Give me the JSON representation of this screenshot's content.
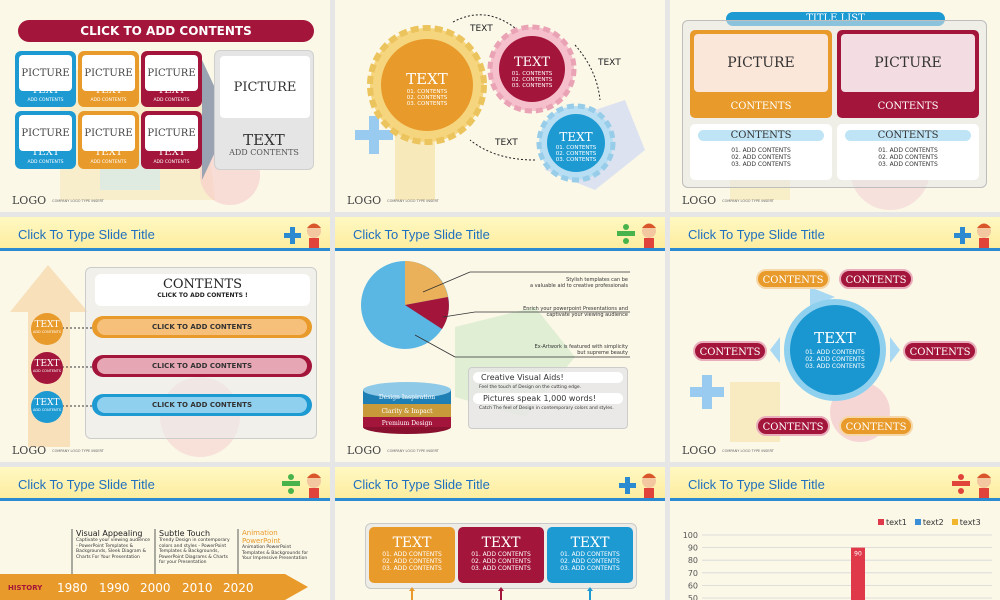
{
  "logo": {
    "text": "LOGO",
    "company": "COMPANY LOGO TYPE INSERT"
  },
  "header_title": "Click To Type Slide Title",
  "slide1": {
    "banner": "CLICK TO ADD CONTENTS",
    "tile_pic": "PICTURE",
    "tile_text": "TEXT",
    "tile_sub": "ADD CONTENTS",
    "big_pic": "PICTURE",
    "big_text": "TEXT",
    "big_sub": "ADD CONTENTS",
    "colors": [
      "#1e9ad3",
      "#e89a2a",
      "#a3153a"
    ]
  },
  "slide2": {
    "gear_text": "TEXT",
    "line1": "01. CONTENTS",
    "line2": "02. CONTENTS",
    "line3": "03. CONTENTS",
    "arrow_label": "TEXT"
  },
  "slide3": {
    "title": "TITLE LIST",
    "picture": "PICTURE",
    "contents": "CONTENTS",
    "line1": "01. ADD CONTENTS",
    "line2": "02. ADD CONTENTS",
    "line3": "03. ADD CONTENTS"
  },
  "slide4": {
    "heading": "CONTENTS",
    "sub": "CLICK TO ADD CONTENTS !",
    "bar": "CLICK TO ADD CONTENTS",
    "text": "TEXT",
    "add": "ADD CONTENTS"
  },
  "slide5": {
    "cap1a": "Stylish templates can be",
    "cap1b": "a valuable aid to creative professionals",
    "cap2a": "Enrich your powerpoint Presentations and",
    "cap2b": "captivate your viewing audience",
    "cap3a": "Ex-Artwork is featured with simplicity",
    "cap3b": "but supreme beauty",
    "layers": [
      "Design Inspiration",
      "Clarity & Impact",
      "Premium Design"
    ],
    "box1": "Creative Visual Aids!",
    "box1_desc": "Feel the touch of Design on the cutting edge.",
    "box2": "Pictures speak 1,000 words!",
    "box2_desc": "Catch The feel of Design in contemporary colors and styles."
  },
  "slide6": {
    "contents": "CONTENTS",
    "center": "TEXT",
    "line1": "01. ADD CONTENTS",
    "line2": "02. ADD CONTENTS",
    "line3": "03. ADD CONTENTS"
  },
  "slide7": {
    "history": "HISTORY",
    "years": [
      "1980",
      "1990",
      "2000",
      "2010",
      "2020"
    ],
    "items": [
      {
        "title": "Visual Appealing",
        "desc": "Captivate your viewing audience - PowerPoint Templates & Backgrounds, Sleek Diagram & Charts For Your Presentation"
      },
      {
        "title": "Subtle Touch",
        "desc": "Trendy Design in contemporary colors and styles - PowerPoint Templates & Backgrounds, PowerPoint Diagrams & Charts for your Presentation"
      },
      {
        "title": "Animation PowerPoint",
        "desc": "Animation PowerPoint Templates & Backgrounds for Your Impressive Presentation"
      }
    ]
  },
  "slide8": {
    "text": "TEXT",
    "line1": "01. ADD CONTENTS",
    "line2": "02. ADD CONTENTS",
    "line3": "03. ADD CONTENTS"
  },
  "chart_data": {
    "type": "bar",
    "series": [
      {
        "name": "text1",
        "color": "#e03a4a",
        "values": [
          90
        ]
      },
      {
        "name": "text2",
        "color": "#3a8fd6",
        "values": []
      },
      {
        "name": "text3",
        "color": "#f1b62c",
        "values": []
      }
    ],
    "y_ticks": [
      "100",
      "90",
      "80",
      "70",
      "60",
      "50"
    ],
    "bar_label": "90",
    "ylim": [
      50,
      100
    ]
  }
}
